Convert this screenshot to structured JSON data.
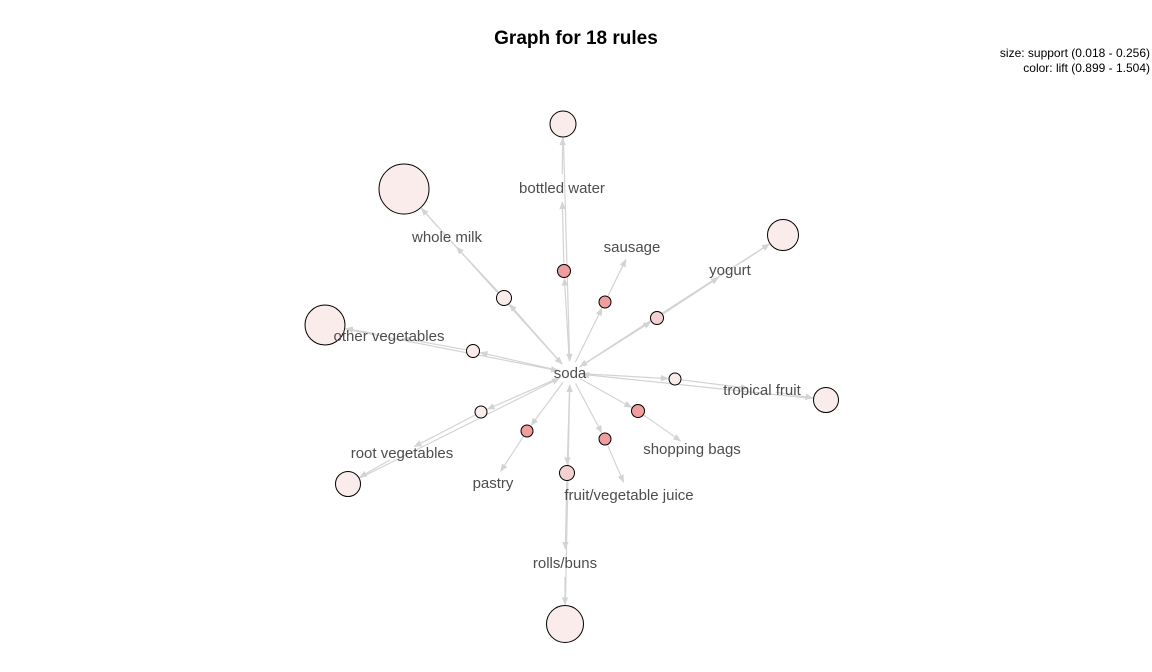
{
  "header": {
    "title": "Graph for 18 rules",
    "legend_size": "size: support (0.018 - 0.256)",
    "legend_color": "color: lift (0.899 - 1.504)"
  },
  "colors": {
    "edge": "#d3d3d3",
    "node_low_lift": "#fbecec",
    "node_mid_lift": "#f5d0d0",
    "node_high_lift": "#ef9d9d",
    "label": "#4d4d4d"
  },
  "graph": {
    "items": [
      {
        "id": "soda",
        "label": "soda"
      },
      {
        "id": "bottled_water",
        "label": "bottled water"
      },
      {
        "id": "whole_milk",
        "label": "whole milk"
      },
      {
        "id": "sausage",
        "label": "sausage"
      },
      {
        "id": "yogurt",
        "label": "yogurt"
      },
      {
        "id": "other_vegetables",
        "label": "other vegetables"
      },
      {
        "id": "tropical_fruit",
        "label": "tropical fruit"
      },
      {
        "id": "root_vegetables",
        "label": "root vegetables"
      },
      {
        "id": "shopping_bags",
        "label": "shopping bags"
      },
      {
        "id": "pastry",
        "label": "pastry"
      },
      {
        "id": "fruit_vegetable_juice",
        "label": "fruit/vegetable juice"
      },
      {
        "id": "rolls_buns",
        "label": "rolls/buns"
      }
    ],
    "rules": [
      {
        "lhs": "soda",
        "rhs": "bottled_water",
        "lift": "high"
      },
      {
        "lhs": "soda",
        "rhs": "whole_milk",
        "lift": "low"
      },
      {
        "lhs": "soda",
        "rhs": "sausage",
        "lift": "high"
      },
      {
        "lhs": "soda",
        "rhs": "yogurt",
        "lift": "mid"
      },
      {
        "lhs": "soda",
        "rhs": "other_vegetables",
        "lift": "low"
      },
      {
        "lhs": "soda",
        "rhs": "tropical_fruit",
        "lift": "low"
      },
      {
        "lhs": "soda",
        "rhs": "root_vegetables",
        "lift": "low"
      },
      {
        "lhs": "soda",
        "rhs": "shopping_bags",
        "lift": "high"
      },
      {
        "lhs": "soda",
        "rhs": "pastry",
        "lift": "high"
      },
      {
        "lhs": "soda",
        "rhs": "fruit_vegetable_juice",
        "lift": "high"
      },
      {
        "lhs": "soda",
        "rhs": "rolls_buns",
        "lift": "mid"
      },
      {
        "lhs": "bottled_water",
        "rhs": "soda",
        "lift": "low"
      },
      {
        "lhs": "whole_milk",
        "rhs": "soda",
        "lift": "low"
      },
      {
        "lhs": "yogurt",
        "rhs": "soda",
        "lift": "low"
      },
      {
        "lhs": "other_vegetables",
        "rhs": "soda",
        "lift": "low"
      },
      {
        "lhs": "tropical_fruit",
        "rhs": "soda",
        "lift": "low"
      },
      {
        "lhs": "root_vegetables",
        "rhs": "soda",
        "lift": "low"
      },
      {
        "lhs": "rolls_buns",
        "rhs": "soda",
        "lift": "low"
      }
    ]
  }
}
